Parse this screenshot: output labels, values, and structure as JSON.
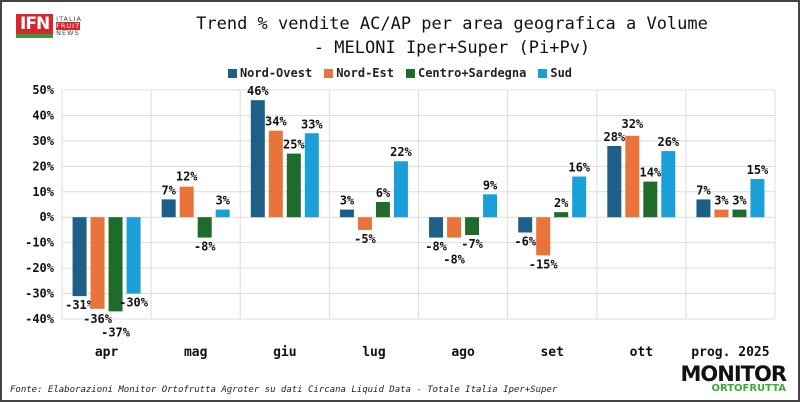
{
  "logos": {
    "top_left": "IFN ITALIA FRUIT NEWS",
    "bottom_right": "MONITOR ORTOFRUTTA"
  },
  "source": "Fonte: Elaborazioni Monitor Ortofrutta Agroter su dati Circana Liquid Data - Totale Italia Iper+Super",
  "chart_data": {
    "type": "bar",
    "title": "Trend % vendite AC/AP per area geografica a Volume",
    "subtitle": "- MELONI Iper+Super (Pi+Pv)",
    "categories": [
      "apr",
      "mag",
      "giu",
      "lug",
      "ago",
      "set",
      "ott",
      "prog. 2025"
    ],
    "series": [
      {
        "name": "Nord-Ovest",
        "color": "#1d5f86",
        "values": [
          -31,
          7,
          46,
          3,
          -8,
          -6,
          28,
          7
        ]
      },
      {
        "name": "Nord-Est",
        "color": "#e8743b",
        "values": [
          -36,
          12,
          34,
          -5,
          -8,
          -15,
          32,
          3
        ]
      },
      {
        "name": "Centro+Sardegna",
        "color": "#1e6b2c",
        "values": [
          -37,
          -8,
          25,
          6,
          -7,
          2,
          14,
          3
        ]
      },
      {
        "name": "Sud",
        "color": "#1a9fd8",
        "values": [
          -30,
          3,
          33,
          22,
          9,
          16,
          26,
          15
        ]
      }
    ],
    "ylim": [
      -40,
      50
    ],
    "yticks": [
      -40,
      -30,
      -20,
      -10,
      0,
      10,
      20,
      30,
      40,
      50
    ],
    "ytick_format": "%",
    "grid": true,
    "legend": "top"
  }
}
